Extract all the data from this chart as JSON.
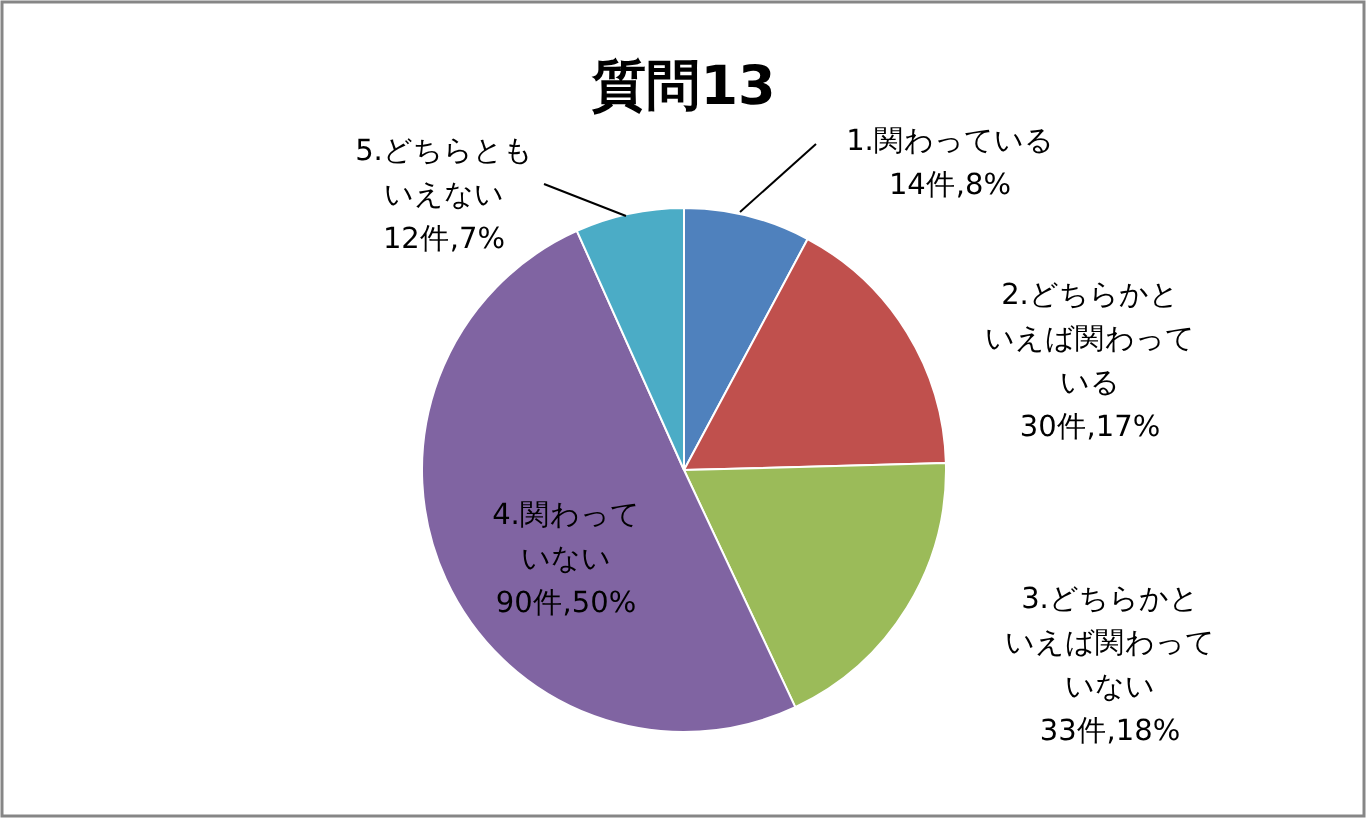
{
  "chart_data": {
    "type": "pie",
    "title": "質問13",
    "categories": [
      "1.関わっている",
      "2.どちらかといえば関わっている",
      "3.どちらかといえば関わっていない",
      "4.関わっていない",
      "5.どちらともいえない"
    ],
    "values": [
      14,
      30,
      33,
      90,
      12
    ],
    "value_labels": [
      "14件,8%",
      "30件,17%",
      "33件,18%",
      "90件,50%",
      "12件,7%"
    ],
    "colors": [
      "#4f81bd",
      "#c0504d",
      "#9bbb59",
      "#8064a2",
      "#4bacc6"
    ]
  }
}
